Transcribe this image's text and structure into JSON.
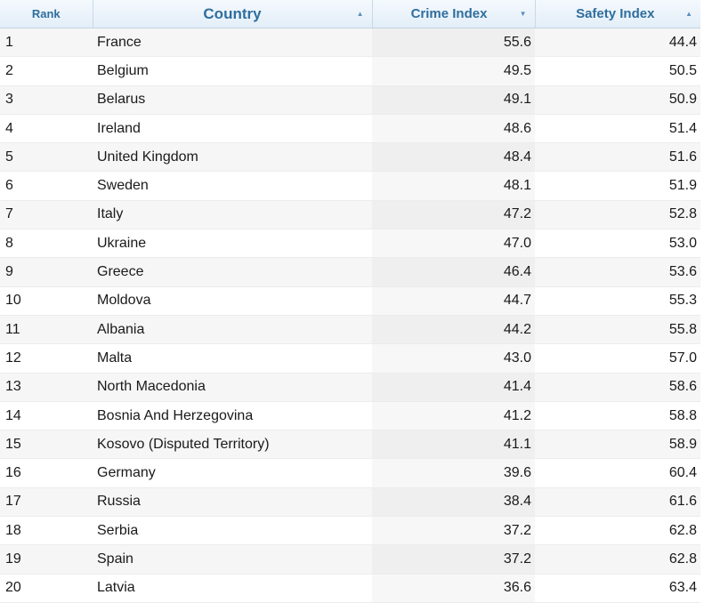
{
  "table": {
    "headers": {
      "rank": "Rank",
      "country": "Country",
      "crime": "Crime Index",
      "safety": "Safety Index"
    },
    "sort_icons": {
      "country": "up-arrow",
      "crime": "down-arrow",
      "safety": "up-arrow"
    },
    "rows": [
      {
        "rank": "1",
        "country": "France",
        "crime": "55.6",
        "safety": "44.4"
      },
      {
        "rank": "2",
        "country": "Belgium",
        "crime": "49.5",
        "safety": "50.5"
      },
      {
        "rank": "3",
        "country": "Belarus",
        "crime": "49.1",
        "safety": "50.9"
      },
      {
        "rank": "4",
        "country": "Ireland",
        "crime": "48.6",
        "safety": "51.4"
      },
      {
        "rank": "5",
        "country": "United Kingdom",
        "crime": "48.4",
        "safety": "51.6"
      },
      {
        "rank": "6",
        "country": "Sweden",
        "crime": "48.1",
        "safety": "51.9"
      },
      {
        "rank": "7",
        "country": "Italy",
        "crime": "47.2",
        "safety": "52.8"
      },
      {
        "rank": "8",
        "country": "Ukraine",
        "crime": "47.0",
        "safety": "53.0"
      },
      {
        "rank": "9",
        "country": "Greece",
        "crime": "46.4",
        "safety": "53.6"
      },
      {
        "rank": "10",
        "country": "Moldova",
        "crime": "44.7",
        "safety": "55.3"
      },
      {
        "rank": "11",
        "country": "Albania",
        "crime": "44.2",
        "safety": "55.8"
      },
      {
        "rank": "12",
        "country": "Malta",
        "crime": "43.0",
        "safety": "57.0"
      },
      {
        "rank": "13",
        "country": "North Macedonia",
        "crime": "41.4",
        "safety": "58.6"
      },
      {
        "rank": "14",
        "country": "Bosnia And Herzegovina",
        "crime": "41.2",
        "safety": "58.8"
      },
      {
        "rank": "15",
        "country": "Kosovo (Disputed Territory)",
        "crime": "41.1",
        "safety": "58.9"
      },
      {
        "rank": "16",
        "country": "Germany",
        "crime": "39.6",
        "safety": "60.4"
      },
      {
        "rank": "17",
        "country": "Russia",
        "crime": "38.4",
        "safety": "61.6"
      },
      {
        "rank": "18",
        "country": "Serbia",
        "crime": "37.2",
        "safety": "62.8"
      },
      {
        "rank": "19",
        "country": "Spain",
        "crime": "37.2",
        "safety": "62.8"
      },
      {
        "rank": "20",
        "country": "Latvia",
        "crime": "36.6",
        "safety": "63.4"
      }
    ]
  }
}
